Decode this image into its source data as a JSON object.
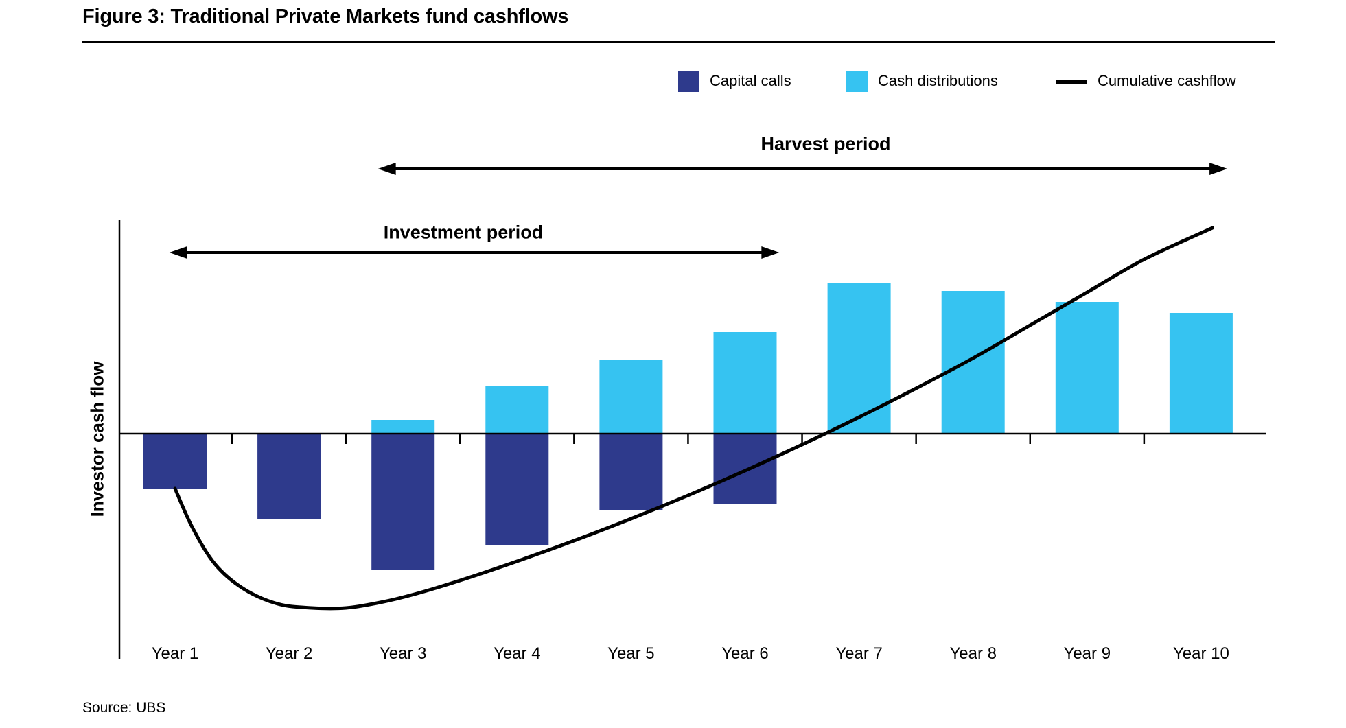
{
  "figure": {
    "title": "Figure 3: Traditional Private Markets fund cashflows",
    "source": "Source: UBS"
  },
  "colors": {
    "capital_calls": "#2E3A8C",
    "cash_distributions": "#36C3F1",
    "cumulative_line": "#000000",
    "axis": "#000000"
  },
  "legend": {
    "items": [
      {
        "key": "capital_calls",
        "label": "Capital calls",
        "swatch": "square"
      },
      {
        "key": "cash_distributions",
        "label": "Cash distributions",
        "swatch": "square"
      },
      {
        "key": "cumulative_line",
        "label": "Cumulative cashflow",
        "swatch": "line"
      }
    ]
  },
  "chart_data": {
    "type": "bar",
    "subtype": "diverging bars with cumulative line (stylized, no numeric y-axis)",
    "categories": [
      "Year 1",
      "Year 2",
      "Year 3",
      "Year 4",
      "Year 5",
      "Year 6",
      "Year 7",
      "Year 8",
      "Year 9",
      "Year 10"
    ],
    "y_axis_label": "Investor cash flow",
    "ylim": [
      -160,
      160
    ],
    "gridlines": false,
    "legend_position": "top-right",
    "series": [
      {
        "name": "Capital calls",
        "type": "bar",
        "values": [
          -40,
          -62,
          -99,
          -81,
          -56,
          -51,
          0,
          0,
          0,
          0
        ]
      },
      {
        "name": "Cash distributions",
        "type": "bar",
        "values": [
          0,
          0,
          10,
          35,
          54,
          74,
          110,
          104,
          96,
          88
        ]
      },
      {
        "name": "Cumulative cashflow",
        "type": "line",
        "points": [
          [
            1.0,
            -40
          ],
          [
            1.15,
            -68
          ],
          [
            1.35,
            -95
          ],
          [
            1.6,
            -113
          ],
          [
            1.9,
            -124
          ],
          [
            2.2,
            -127
          ],
          [
            2.5,
            -127
          ],
          [
            2.8,
            -123
          ],
          [
            3.1,
            -117
          ],
          [
            3.5,
            -107
          ],
          [
            4.0,
            -93
          ],
          [
            4.5,
            -78
          ],
          [
            5.0,
            -62
          ],
          [
            5.5,
            -45
          ],
          [
            6.0,
            -27
          ],
          [
            6.5,
            -8
          ],
          [
            7.0,
            12
          ],
          [
            7.5,
            33
          ],
          [
            8.0,
            55
          ],
          [
            8.5,
            79
          ],
          [
            9.0,
            103
          ],
          [
            9.5,
            127
          ],
          [
            10.1,
            150
          ]
        ]
      }
    ],
    "annotations": [
      {
        "label": "Investment period",
        "from_year": 0.95,
        "to_year": 6.3
      },
      {
        "label": "Harvest period",
        "from_year": 2.78,
        "to_year": 10.23
      }
    ]
  }
}
